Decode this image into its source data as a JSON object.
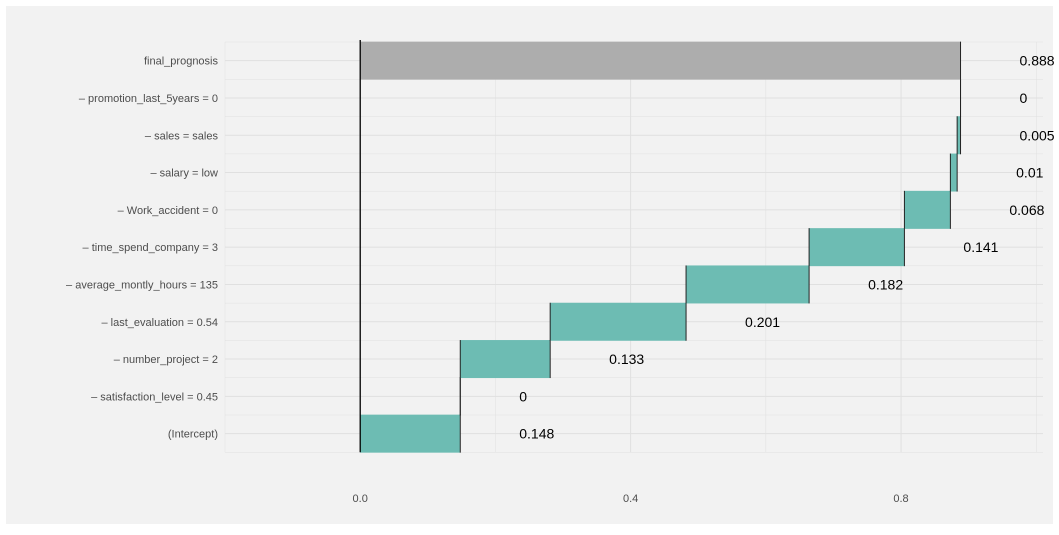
{
  "chart_data": {
    "type": "waterfall",
    "title": "",
    "xlabel": "",
    "ylabel": "",
    "xlim": [
      -0.2,
      1.01
    ],
    "x_ticks": [
      0.0,
      0.4,
      0.8
    ],
    "x_tick_labels": [
      "0.0",
      "0.4",
      "0.8"
    ],
    "grid": true,
    "legend": "none",
    "baseline": 0,
    "colors": {
      "contribution": "#6dbcb3",
      "prediction": "#adadad",
      "panel_bg": "#f2f2f2",
      "grid": "#e0e0e0"
    },
    "rows": [
      {
        "label": "(Intercept)",
        "start": 0.0,
        "end": 0.148,
        "value_label": "0.148",
        "kind": "contribution"
      },
      {
        "label": "– satisfaction_level = 0.45",
        "start": 0.148,
        "end": 0.148,
        "value_label": "0",
        "kind": "contribution"
      },
      {
        "label": "– number_project = 2",
        "start": 0.148,
        "end": 0.281,
        "value_label": "0.133",
        "kind": "contribution"
      },
      {
        "label": "– last_evaluation = 0.54",
        "start": 0.281,
        "end": 0.482,
        "value_label": "0.201",
        "kind": "contribution"
      },
      {
        "label": "– average_montly_hours = 135",
        "start": 0.482,
        "end": 0.664,
        "value_label": "0.182",
        "kind": "contribution"
      },
      {
        "label": "– time_spend_company = 3",
        "start": 0.664,
        "end": 0.805,
        "value_label": "0.141",
        "kind": "contribution"
      },
      {
        "label": "– Work_accident = 0",
        "start": 0.805,
        "end": 0.873,
        "value_label": "0.068",
        "kind": "contribution"
      },
      {
        "label": "– salary = low",
        "start": 0.873,
        "end": 0.883,
        "value_label": "0.01",
        "kind": "contribution"
      },
      {
        "label": "– sales = sales",
        "start": 0.883,
        "end": 0.888,
        "value_label": "0.005",
        "kind": "contribution"
      },
      {
        "label": "– promotion_last_5years = 0",
        "start": 0.888,
        "end": 0.888,
        "value_label": "0",
        "kind": "contribution"
      },
      {
        "label": "final_prognosis",
        "start": 0.0,
        "end": 0.888,
        "value_label": "0.888",
        "kind": "prediction"
      }
    ]
  }
}
